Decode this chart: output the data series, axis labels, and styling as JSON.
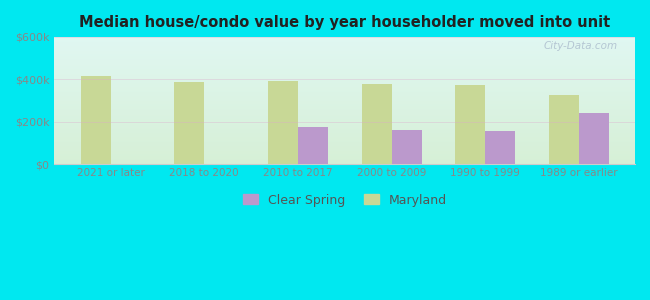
{
  "title": "Median house/condo value by year householder moved into unit",
  "categories": [
    "2021 or later",
    "2018 to 2020",
    "2010 to 2017",
    "2000 to 2009",
    "1990 to 1999",
    "1989 or earlier"
  ],
  "clear_spring": [
    null,
    null,
    175000,
    162000,
    155000,
    242000
  ],
  "maryland": [
    415000,
    388000,
    393000,
    378000,
    373000,
    328000
  ],
  "clear_spring_color": "#bb99cc",
  "maryland_color": "#c8d896",
  "background_outer": "#00e8f0",
  "ylabel_color": "#888888",
  "xlabel_color": "#888888",
  "title_color": "#222222",
  "ylim": [
    0,
    600000
  ],
  "yticks": [
    0,
    200000,
    400000,
    600000
  ],
  "ytick_labels": [
    "$0",
    "$200k",
    "$400k",
    "$600k"
  ],
  "legend_clear_spring": "Clear Spring",
  "legend_maryland": "Maryland",
  "bar_width": 0.32,
  "watermark": "City-Data.com"
}
